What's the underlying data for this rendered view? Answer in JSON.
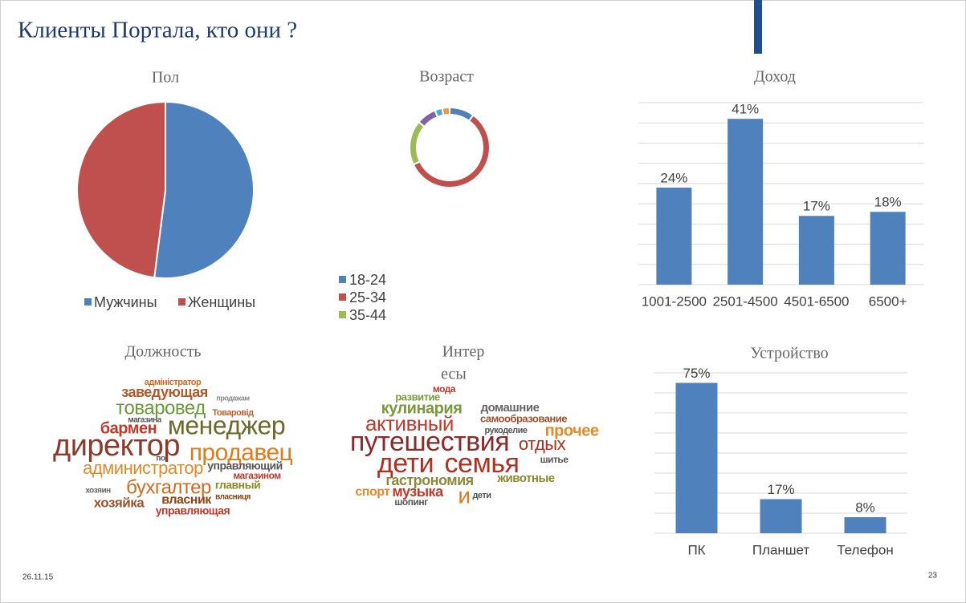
{
  "title": "Клиенты Портала, кто они ?",
  "date": "26.11.15",
  "page": "23",
  "chart_data": [
    {
      "type": "pie",
      "title": "Пол",
      "categories": [
        "Мужчины",
        "Женщины"
      ],
      "values": [
        52,
        48
      ],
      "colors": [
        "#4f81bd",
        "#c0504d"
      ],
      "legend": "bottom"
    },
    {
      "type": "donut",
      "title": "Возраст",
      "categories": [
        "18-24",
        "25-34",
        "35-44",
        null,
        null,
        null
      ],
      "values": [
        10,
        58,
        18,
        8,
        3,
        3
      ],
      "colors": [
        "#4f81bd",
        "#c0504d",
        "#9bbb59",
        "#8064a2",
        "#4bacc6",
        "#f79646"
      ],
      "legend": "bottom"
    },
    {
      "type": "bar",
      "title": "Доход",
      "categories": [
        "1001-2500",
        "2501-4500",
        "4501-6500",
        "6500+"
      ],
      "values": [
        24,
        41,
        17,
        18
      ],
      "value_labels": [
        "24%",
        "41%",
        "17%",
        "18%"
      ],
      "color": "#4f81bd",
      "ylim": [
        0,
        45
      ],
      "yticks": [
        0,
        5,
        10,
        15,
        20,
        25,
        30,
        35,
        40,
        45
      ],
      "grid": true
    },
    {
      "type": "wordcloud",
      "title": "Должность",
      "words": [
        "директор",
        "менеджер",
        "продавец",
        "товаровед",
        "бухгалтер",
        "администратор",
        "заведующая",
        "бармен",
        "хозяйка",
        "власник",
        "управляющая",
        "управляющий",
        "главный",
        "магазином",
        "адміністратор",
        "Товаровід",
        "магазина",
        "продажам",
        "хозяин",
        "власниця",
        "по"
      ]
    },
    {
      "type": "wordcloud",
      "title_lines": [
        "Интер",
        "есы"
      ],
      "words": [
        "путешествия",
        "дети",
        "семья",
        "активный",
        "отдых",
        "прочее",
        "кулинария",
        "домашние",
        "самообразование",
        "гастрономия",
        "животные",
        "музыка",
        "спорт",
        "и",
        "шопинг",
        "развитие",
        "мода",
        "рукоделие",
        "шитье",
        "дети"
      ]
    },
    {
      "type": "bar",
      "title": "Устройство",
      "categories": [
        "ПК",
        "Планшет",
        "Телефон"
      ],
      "values": [
        75,
        17,
        8
      ],
      "value_labels": [
        "75%",
        "17%",
        "8%"
      ],
      "color": "#4f81bd",
      "ylim": [
        0,
        80
      ],
      "yticks": [
        0,
        10,
        20,
        30,
        40,
        50,
        60,
        70,
        80
      ],
      "grid": true
    }
  ]
}
